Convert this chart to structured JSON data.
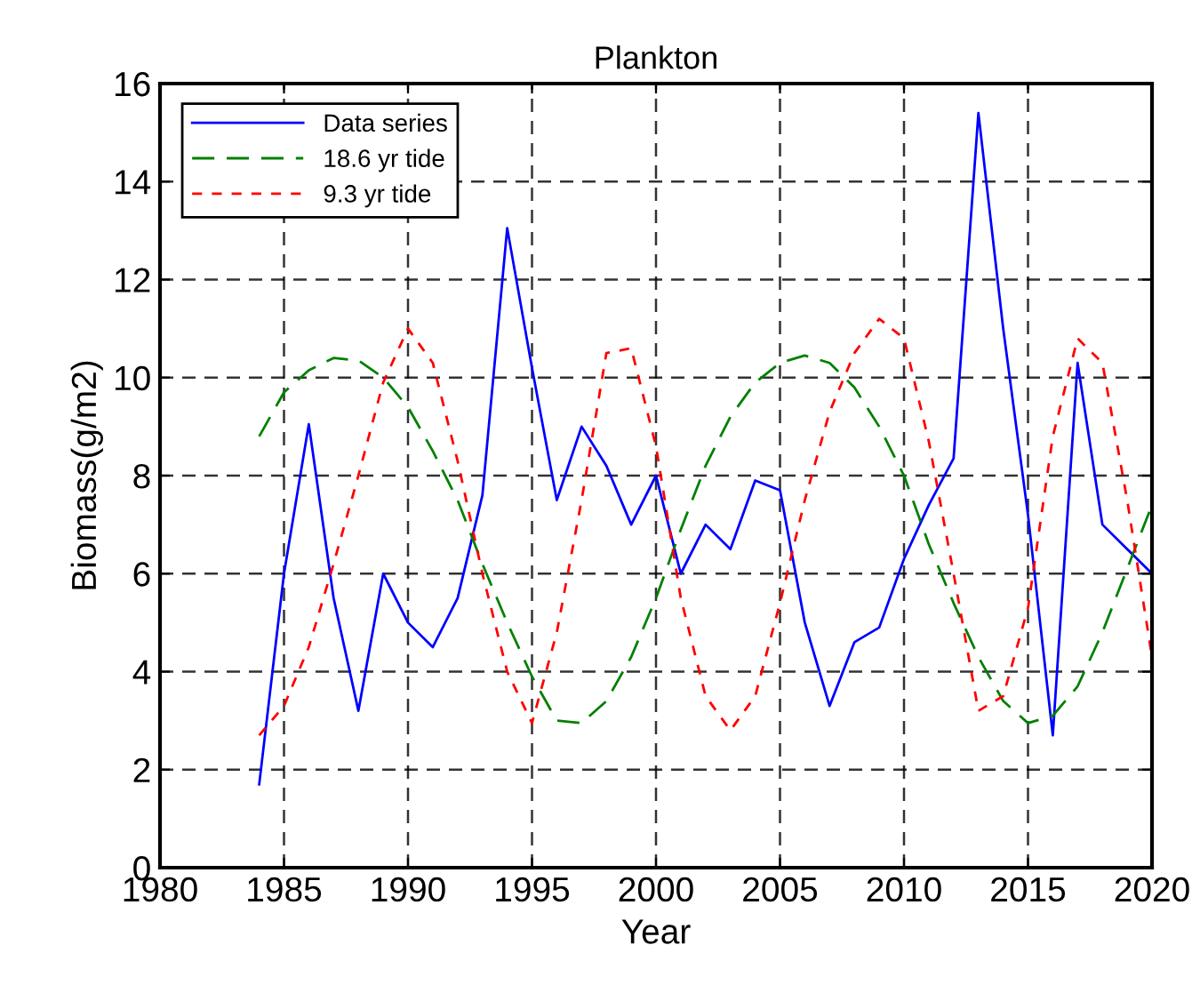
{
  "chart_data": {
    "type": "line",
    "title": "Plankton",
    "xlabel": "Year",
    "ylabel": "Biomass(g/m2)",
    "x": [
      1984,
      1985,
      1986,
      1987,
      1988,
      1989,
      1990,
      1991,
      1992,
      1993,
      1994,
      1995,
      1996,
      1997,
      1998,
      1999,
      2000,
      2001,
      2002,
      2003,
      2004,
      2005,
      2006,
      2007,
      2008,
      2009,
      2010,
      2011,
      2012,
      2013,
      2014,
      2015,
      2016,
      2017,
      2018,
      2019,
      2020
    ],
    "series": [
      {
        "name": "Data series",
        "color": "#0000ff",
        "line_style": "solid",
        "values": [
          1.7,
          6.0,
          9.05,
          5.5,
          3.2,
          6.0,
          5.0,
          4.5,
          5.5,
          7.6,
          13.05,
          10.2,
          7.5,
          9.0,
          8.2,
          7.0,
          8.0,
          6.0,
          7.0,
          6.5,
          7.9,
          7.7,
          5.0,
          3.3,
          4.6,
          4.9,
          6.3,
          7.4,
          8.35,
          15.4,
          11.0,
          7.2,
          2.7,
          10.3,
          7.0,
          6.5,
          6.0
        ]
      },
      {
        "name": "18.6 yr tide",
        "color": "#008000",
        "line_style": "dashed",
        "values": [
          8.8,
          9.7,
          10.15,
          10.4,
          10.35,
          10.0,
          9.4,
          8.5,
          7.5,
          6.2,
          5.0,
          3.9,
          3.0,
          2.95,
          3.4,
          4.3,
          5.5,
          6.9,
          8.2,
          9.2,
          9.9,
          10.3,
          10.45,
          10.3,
          9.8,
          9.0,
          8.0,
          6.6,
          5.4,
          4.3,
          3.4,
          2.95,
          3.1,
          3.7,
          4.8,
          6.1,
          7.4
        ]
      },
      {
        "name": "9.3 yr tide",
        "color": "#ff0000",
        "line_style": "dotted",
        "values": [
          2.7,
          3.3,
          4.5,
          6.2,
          8.0,
          9.9,
          11.0,
          10.3,
          8.3,
          6.0,
          4.0,
          2.95,
          4.8,
          7.5,
          10.5,
          10.6,
          8.6,
          5.5,
          3.5,
          2.8,
          3.5,
          5.4,
          7.5,
          9.3,
          10.5,
          11.2,
          10.8,
          8.7,
          6.0,
          3.2,
          3.5,
          5.3,
          8.8,
          10.8,
          10.3,
          7.5,
          4.3
        ]
      }
    ],
    "xlim": [
      1980,
      2020
    ],
    "xticks": [
      1980,
      1985,
      1990,
      1995,
      2000,
      2005,
      2010,
      2015,
      2020
    ],
    "ylim": [
      0,
      16
    ],
    "yticks": [
      0,
      2,
      4,
      6,
      8,
      10,
      12,
      14,
      16
    ],
    "grid": true,
    "legend": "top left"
  }
}
